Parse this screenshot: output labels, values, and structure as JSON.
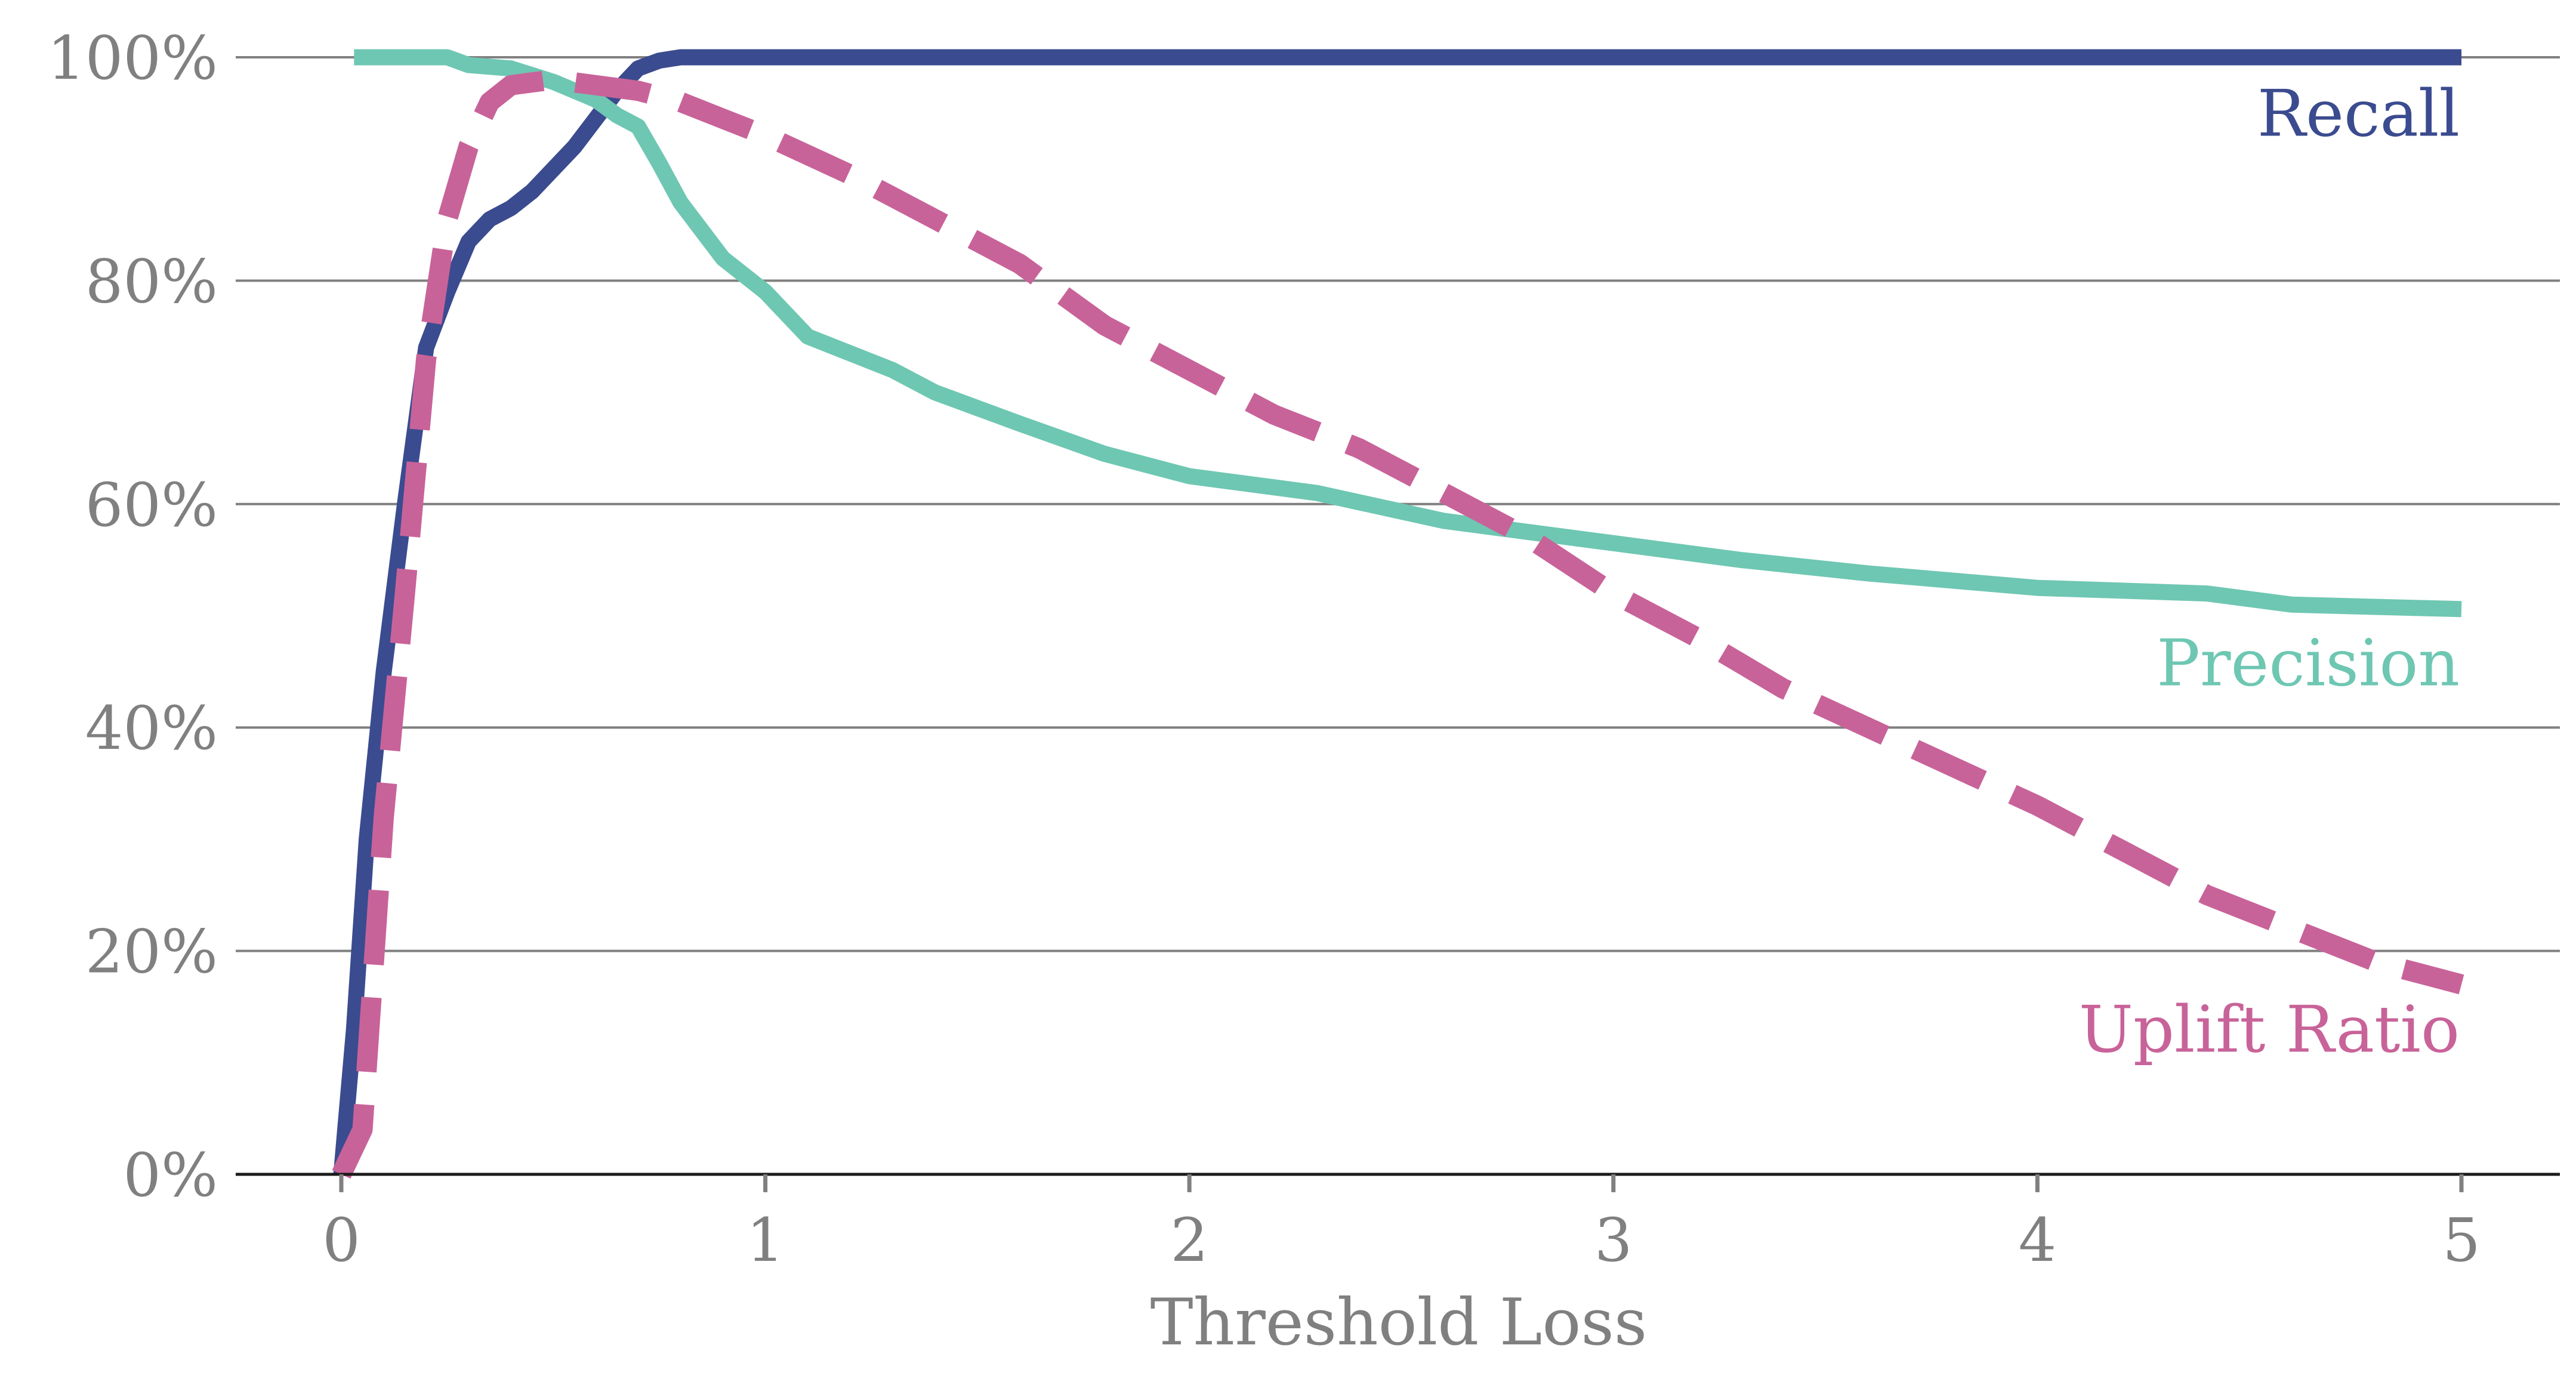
{
  "chart_data": {
    "type": "line",
    "title": "",
    "xlabel": "Threshold Loss",
    "ylabel": "",
    "xlim": [
      -0.25,
      5.25
    ],
    "ylim": [
      0,
      100
    ],
    "xticks": [
      0,
      1,
      2,
      3,
      4,
      5
    ],
    "xtick_labels": [
      "0",
      "1",
      "2",
      "3",
      "4",
      "5"
    ],
    "yticks": [
      0,
      20,
      40,
      60,
      80,
      100
    ],
    "ytick_labels": [
      "0%",
      "20%",
      "40%",
      "60%",
      "80%",
      "100%"
    ],
    "grid": "horizontal",
    "series": [
      {
        "name": "Recall",
        "label": "Recall",
        "color": "#3b4b8f",
        "dash": "solid",
        "label_y": 95,
        "x": [
          0,
          0.03,
          0.06,
          0.1,
          0.15,
          0.2,
          0.25,
          0.3,
          0.35,
          0.4,
          0.45,
          0.5,
          0.55,
          0.6,
          0.65,
          0.7,
          0.75,
          0.8,
          1,
          1.5,
          2,
          2.5,
          3,
          3.5,
          4,
          4.5,
          5
        ],
        "y": [
          0,
          13,
          30,
          45,
          60,
          74,
          79,
          83.5,
          85.5,
          86.5,
          88,
          90,
          92,
          94.5,
          97,
          99,
          99.7,
          100,
          100,
          100,
          100,
          100,
          100,
          100,
          100,
          100,
          100
        ]
      },
      {
        "name": "Precision",
        "label": "Precision",
        "color": "#6ec7b2",
        "dash": "solid",
        "label_y": 45.8,
        "x": [
          0.03,
          0.25,
          0.3,
          0.4,
          0.5,
          0.6,
          0.65,
          0.7,
          0.75,
          0.8,
          0.85,
          0.9,
          1,
          1.1,
          1.3,
          1.4,
          1.6,
          1.8,
          2,
          2.3,
          2.6,
          3,
          3.3,
          3.6,
          4,
          4.4,
          4.6,
          5
        ],
        "y": [
          100,
          100,
          99.3,
          99,
          97.8,
          96.2,
          94.8,
          93.8,
          90.5,
          87,
          84.5,
          82,
          79,
          75,
          72,
          70,
          67.2,
          64.5,
          62.5,
          61,
          58.5,
          56.5,
          55,
          53.8,
          52.5,
          52,
          51,
          50.6
        ]
      },
      {
        "name": "Uplift Ratio",
        "label": "Uplift Ratio",
        "color": "#c86399",
        "dash": "dashed",
        "label_y": 13,
        "x": [
          0,
          0.05,
          0.1,
          0.15,
          0.2,
          0.25,
          0.3,
          0.35,
          0.4,
          0.5,
          0.6,
          0.7,
          0.8,
          0.9,
          1,
          1.2,
          1.4,
          1.6,
          1.8,
          2,
          2.2,
          2.4,
          2.6,
          2.8,
          3,
          3.2,
          3.4,
          3.6,
          3.8,
          4,
          4.2,
          4.4,
          4.6,
          4.8,
          5
        ],
        "y": [
          0,
          4,
          32,
          52,
          73,
          85.5,
          92,
          96,
          97.5,
          98,
          97.5,
          97,
          96,
          94.5,
          93,
          89.5,
          85.5,
          81.5,
          76,
          72,
          68,
          65,
          61,
          57,
          52,
          48,
          43.5,
          40,
          36.5,
          33,
          29,
          25,
          22,
          19,
          17
        ]
      }
    ]
  }
}
